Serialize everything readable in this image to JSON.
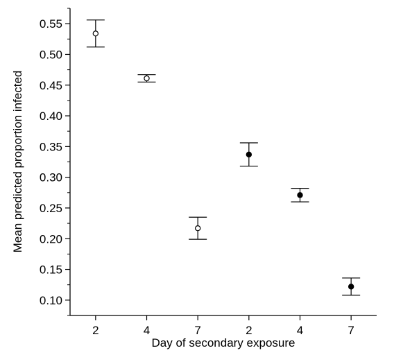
{
  "chart_data": {
    "type": "scatter",
    "title": "",
    "xlabel": "Day of secondary exposure",
    "ylabel": "Mean predicted proportion infected",
    "categories": [
      "2",
      "4",
      "7",
      "2",
      "4",
      "7"
    ],
    "ylim": [
      0.075,
      0.575
    ],
    "yticks": [
      "0.10",
      "0.15",
      "0.20",
      "0.25",
      "0.30",
      "0.35",
      "0.40",
      "0.45",
      "0.50",
      "0.55"
    ],
    "grid": false,
    "legend": "none",
    "series": [
      {
        "marker": "open-circle",
        "color": "#000000",
        "points": [
          {
            "category_index": 0,
            "y": 0.534,
            "lower": 0.512,
            "upper": 0.556
          },
          {
            "category_index": 1,
            "y": 0.461,
            "lower": 0.455,
            "upper": 0.467
          },
          {
            "category_index": 2,
            "y": 0.217,
            "lower": 0.199,
            "upper": 0.235
          }
        ]
      },
      {
        "marker": "filled-circle",
        "color": "#000000",
        "points": [
          {
            "category_index": 3,
            "y": 0.337,
            "lower": 0.318,
            "upper": 0.356
          },
          {
            "category_index": 4,
            "y": 0.271,
            "lower": 0.26,
            "upper": 0.282
          },
          {
            "category_index": 5,
            "y": 0.122,
            "lower": 0.108,
            "upper": 0.136
          }
        ]
      }
    ]
  }
}
